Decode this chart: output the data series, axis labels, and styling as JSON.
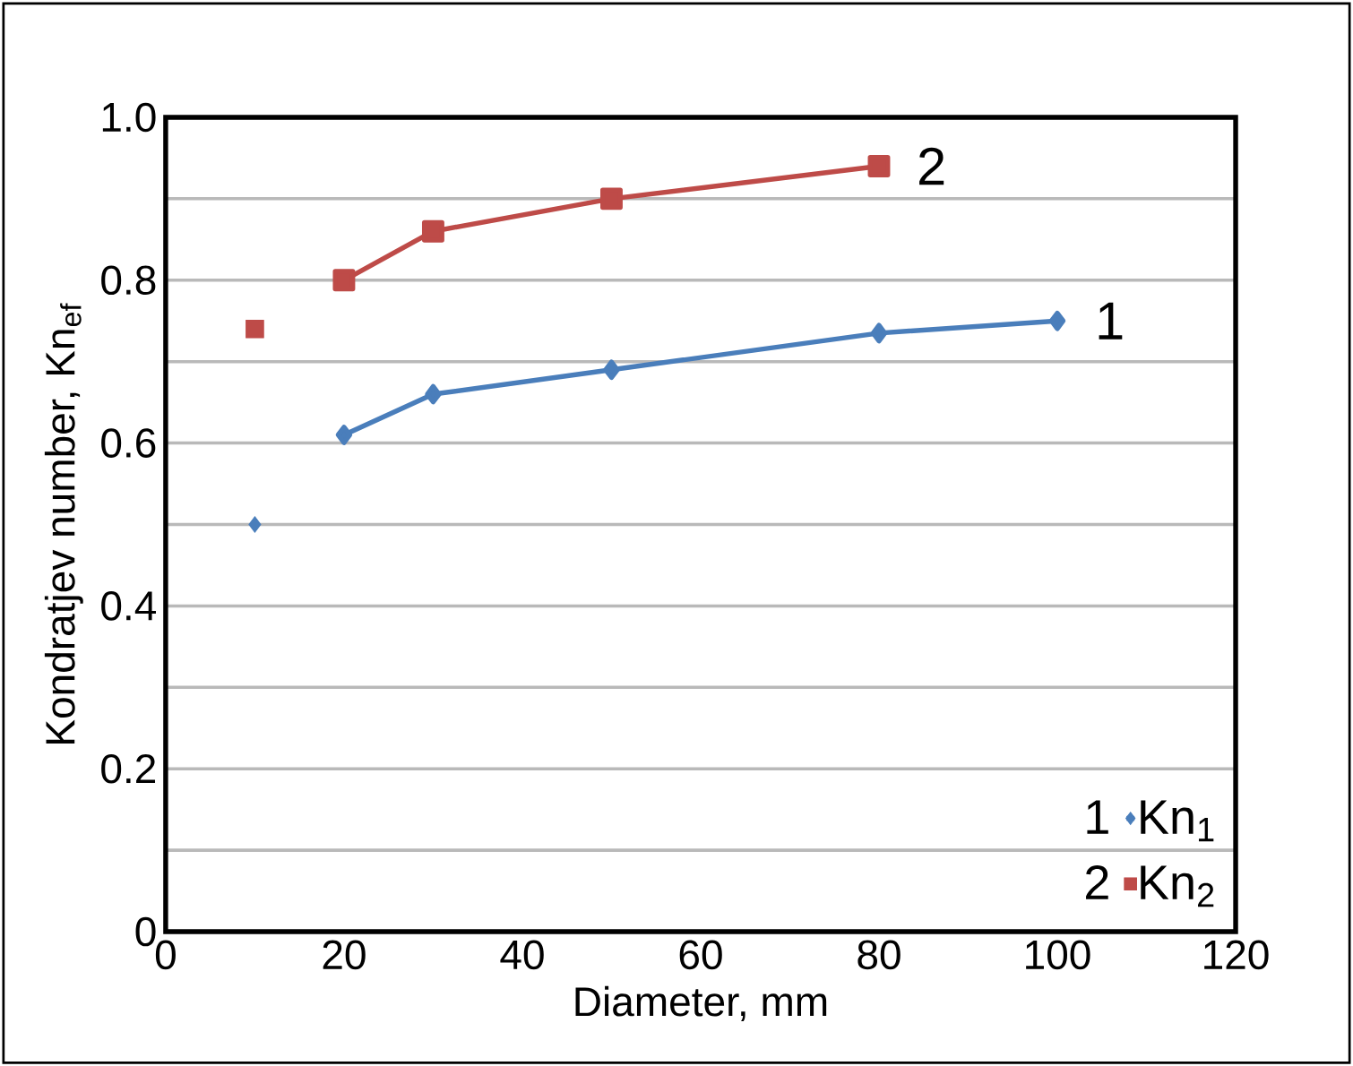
{
  "chart_data": {
    "type": "line",
    "xlabel": "Diameter, mm",
    "ylabel": "Kondratjev number, Kn$_{ef}$",
    "xlim": [
      0,
      120
    ],
    "xticks": [
      0,
      20,
      40,
      60,
      80,
      100,
      120
    ],
    "ylim": [
      0,
      1.0
    ],
    "yticks": [
      0,
      {
        "value": 0.1,
        "label": null
      },
      {
        "value": 0.2,
        "label": "0.2"
      },
      {
        "value": 0.3,
        "label": null
      },
      {
        "value": 0.4,
        "label": "0.4"
      },
      {
        "value": 0.5,
        "label": null
      },
      {
        "value": 0.6,
        "label": "0.6"
      },
      {
        "value": 0.7,
        "label": null
      },
      {
        "value": 0.8,
        "label": "0.8"
      },
      {
        "value": 0.9,
        "label": null
      },
      {
        "value": 1.0,
        "label": "1.0"
      }
    ],
    "grid": "y",
    "legend": "bottom right",
    "line_style": "solid",
    "series": [
      {
        "name": "Kn$_{1}$",
        "color": "#4a7ebb",
        "marker": "diamond",
        "x": [
          20,
          30,
          50,
          80,
          100
        ],
        "values": [
          0.61,
          0.66,
          0.69,
          0.735,
          0.75
        ]
      },
      {
        "name": "Kn$_{2}$",
        "color": "#be4b48",
        "marker": "square",
        "x": [
          20,
          30,
          50,
          80
        ],
        "values": [
          0.8,
          0.86,
          0.9,
          0.94
        ]
      },
      {
        "type": "scatter",
        "color": "#4a7ebb",
        "marker": "diamond",
        "x": [
          10
        ],
        "values": [
          0.5
        ]
      },
      {
        "type": "scatter",
        "color": "#be4b48",
        "marker": "square",
        "x": [
          10
        ],
        "values": [
          0.74
        ]
      }
    ],
    "annotations": [
      {
        "text": "1",
        "x": 100,
        "y": 0.75
      },
      {
        "text": "2",
        "x": 80,
        "y": 0.94
      }
    ]
  }
}
